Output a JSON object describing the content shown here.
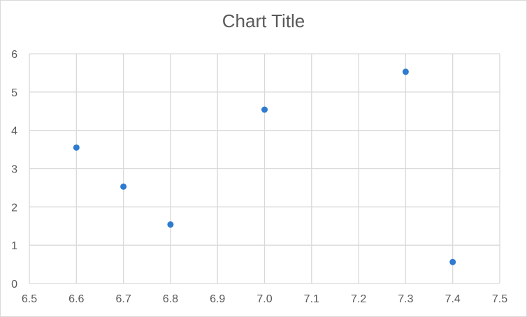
{
  "chart_data": {
    "type": "scatter",
    "title": "Chart Title",
    "xlabel": "",
    "ylabel": "",
    "xlim": [
      6.5,
      7.5
    ],
    "ylim": [
      0,
      6
    ],
    "xticks": [
      "6.5",
      "6.6",
      "6.7",
      "6.8",
      "6.9",
      "7.0",
      "7.1",
      "7.2",
      "7.3",
      "7.4",
      "7.5"
    ],
    "yticks": [
      "0",
      "1",
      "2",
      "3",
      "4",
      "5",
      "6"
    ],
    "grid": true,
    "legend": false,
    "series": [
      {
        "color": "#2e7bcf",
        "points": [
          {
            "x": 6.6,
            "y": 3.55
          },
          {
            "x": 6.7,
            "y": 2.53
          },
          {
            "x": 6.8,
            "y": 1.54
          },
          {
            "x": 7.0,
            "y": 4.54
          },
          {
            "x": 7.3,
            "y": 5.53
          },
          {
            "x": 7.4,
            "y": 0.56
          }
        ]
      }
    ]
  }
}
